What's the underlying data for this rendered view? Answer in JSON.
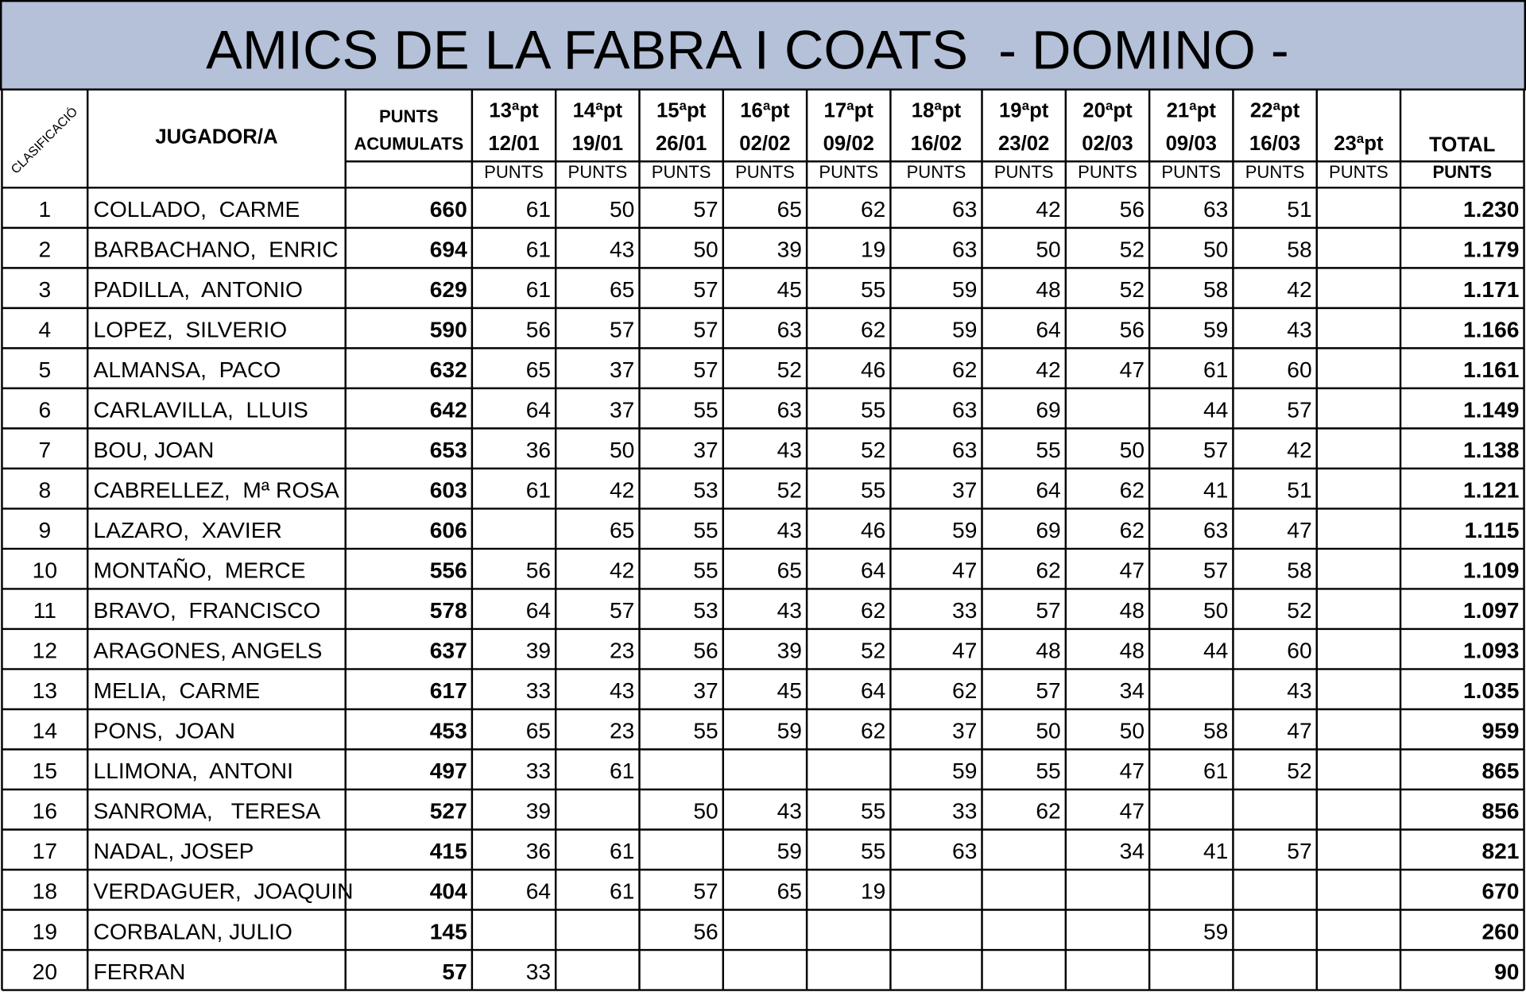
{
  "title": "AMICS DE LA FABRA I COATS  - DOMINO -",
  "table": {
    "header": {
      "rank": "CLASIFICACIÓ",
      "player": "JUGADOR/A",
      "accumulated": [
        "PUNTS",
        "ACUMULATS"
      ],
      "rounds": [
        {
          "round": "13ªpt",
          "date": "12/01",
          "unit": "PUNTS"
        },
        {
          "round": "14ªpt",
          "date": "19/01",
          "unit": "PUNTS"
        },
        {
          "round": "15ªpt",
          "date": "26/01",
          "unit": "PUNTS"
        },
        {
          "round": "16ªpt",
          "date": "02/02",
          "unit": "PUNTS"
        },
        {
          "round": "17ªpt",
          "date": "09/02",
          "unit": "PUNTS"
        },
        {
          "round": "18ªpt",
          "date": "16/02",
          "unit": "PUNTS"
        },
        {
          "round": "19ªpt",
          "date": "23/02",
          "unit": "PUNTS"
        },
        {
          "round": "20ªpt",
          "date": "02/03",
          "unit": "PUNTS"
        },
        {
          "round": "21ªpt",
          "date": "09/03",
          "unit": "PUNTS"
        },
        {
          "round": "22ªpt",
          "date": "16/03",
          "unit": "PUNTS"
        },
        {
          "round": "23ªpt",
          "unit": "PUNTS"
        }
      ],
      "total": [
        "TOTAL",
        "PUNTS"
      ]
    },
    "rows": [
      [
        "1",
        "COLLADO,  CARME",
        "660",
        "61",
        "50",
        "57",
        "65",
        "62",
        "63",
        "42",
        "56",
        "63",
        "51",
        null,
        "1.230"
      ],
      [
        "2",
        "BARBACHANO,  ENRIC",
        "694",
        "61",
        "43",
        "50",
        "39",
        "19",
        "63",
        "50",
        "52",
        "50",
        "58",
        null,
        "1.179"
      ],
      [
        "3",
        "PADILLA,  ANTONIO",
        "629",
        "61",
        "65",
        "57",
        "45",
        "55",
        "59",
        "48",
        "52",
        "58",
        "42",
        null,
        "1.171"
      ],
      [
        "4",
        "LOPEZ,  SILVERIO",
        "590",
        "56",
        "57",
        "57",
        "63",
        "62",
        "59",
        "64",
        "56",
        "59",
        "43",
        null,
        "1.166"
      ],
      [
        "5",
        "ALMANSA,  PACO",
        "632",
        "65",
        "37",
        "57",
        "52",
        "46",
        "62",
        "42",
        "47",
        "61",
        "60",
        null,
        "1.161"
      ],
      [
        "6",
        "CARLAVILLA,  LLUIS",
        "642",
        "64",
        "37",
        "55",
        "63",
        "55",
        "63",
        "69",
        null,
        "44",
        "57",
        null,
        "1.149"
      ],
      [
        "7",
        "BOU, JOAN",
        "653",
        "36",
        "50",
        "37",
        "43",
        "52",
        "63",
        "55",
        "50",
        "57",
        "42",
        null,
        "1.138"
      ],
      [
        "8",
        "CABRELLEZ,  Mª ROSA",
        "603",
        "61",
        "42",
        "53",
        "52",
        "55",
        "37",
        "64",
        "62",
        "41",
        "51",
        null,
        "1.121"
      ],
      [
        "9",
        "LAZARO,  XAVIER",
        "606",
        null,
        "65",
        "55",
        "43",
        "46",
        "59",
        "69",
        "62",
        "63",
        "47",
        null,
        "1.115"
      ],
      [
        "10",
        "MONTAÑO,  MERCE",
        "556",
        "56",
        "42",
        "55",
        "65",
        "64",
        "47",
        "62",
        "47",
        "57",
        "58",
        null,
        "1.109"
      ],
      [
        "11",
        "BRAVO,  FRANCISCO",
        "578",
        "64",
        "57",
        "53",
        "43",
        "62",
        "33",
        "57",
        "48",
        "50",
        "52",
        null,
        "1.097"
      ],
      [
        "12",
        "ARAGONES, ANGELS",
        "637",
        "39",
        "23",
        "56",
        "39",
        "52",
        "47",
        "48",
        "48",
        "44",
        "60",
        null,
        "1.093"
      ],
      [
        "13",
        "MELIA,  CARME",
        "617",
        "33",
        "43",
        "37",
        "45",
        "64",
        "62",
        "57",
        "34",
        null,
        "43",
        null,
        "1.035"
      ],
      [
        "14",
        "PONS,  JOAN",
        "453",
        "65",
        "23",
        "55",
        "59",
        "62",
        "37",
        "50",
        "50",
        "58",
        "47",
        null,
        "959"
      ],
      [
        "15",
        "LLIMONA,  ANTONI",
        "497",
        "33",
        "61",
        null,
        null,
        null,
        "59",
        "55",
        "47",
        "61",
        "52",
        null,
        "865"
      ],
      [
        "16",
        "SANROMA,   TERESA",
        "527",
        "39",
        null,
        "50",
        "43",
        "55",
        "33",
        "62",
        "47",
        null,
        null,
        null,
        "856"
      ],
      [
        "17",
        "NADAL, JOSEP",
        "415",
        "36",
        "61",
        null,
        "59",
        "55",
        "63",
        null,
        "34",
        "41",
        "57",
        null,
        "821"
      ],
      [
        "18",
        "VERDAGUER,  JOAQUIN",
        "404",
        "64",
        "61",
        "57",
        "65",
        "19",
        null,
        null,
        null,
        null,
        null,
        null,
        "670"
      ],
      [
        "19",
        "CORBALAN, JULIO",
        "145",
        null,
        null,
        "56",
        null,
        null,
        null,
        null,
        null,
        "59",
        null,
        null,
        "260"
      ],
      [
        "20",
        "FERRAN",
        "57",
        "33",
        null,
        null,
        null,
        null,
        null,
        null,
        null,
        null,
        null,
        null,
        "90"
      ]
    ]
  }
}
